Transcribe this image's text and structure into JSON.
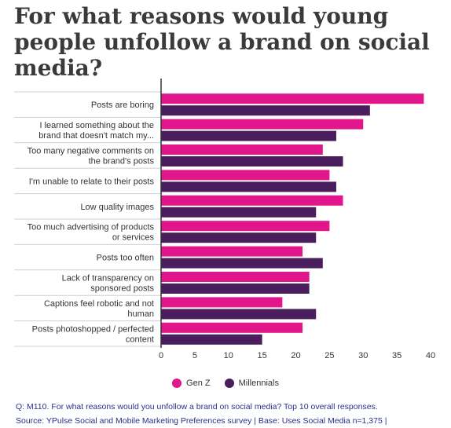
{
  "title": "For what reasons would young people unfollow a brand on social media?",
  "chart_data": {
    "type": "bar",
    "orientation": "horizontal",
    "categories": [
      [
        "Posts are boring"
      ],
      [
        "I learned something about the",
        "brand that doesn't match my..."
      ],
      [
        "Too many negative comments on",
        "the brand's posts"
      ],
      [
        "I'm unable to relate to their posts"
      ],
      [
        "Low quality images"
      ],
      [
        "Too much advertising of products",
        "or services"
      ],
      [
        "Posts too often"
      ],
      [
        "Lack of transparency on",
        "sponsored posts"
      ],
      [
        "Captions feel robotic and not",
        "human"
      ],
      [
        "Posts photoshopped / perfected",
        "content"
      ]
    ],
    "series": [
      {
        "name": "Gen Z",
        "color": "#e0168a",
        "values": [
          39,
          30,
          24,
          25,
          27,
          25,
          21,
          22,
          18,
          21
        ]
      },
      {
        "name": "Millennials",
        "color": "#4a1d5c",
        "values": [
          31,
          26,
          27,
          26,
          23,
          23,
          24,
          22,
          23,
          15
        ]
      }
    ],
    "xlim": [
      0,
      40
    ],
    "xticks": [
      0,
      5,
      10,
      15,
      20,
      25,
      30,
      35,
      40
    ],
    "grid": false,
    "legend_position": "bottom"
  },
  "legend": {
    "genz": "Gen Z",
    "millennials": "Millennials",
    "genz_color": "#e0168a",
    "millennials_color": "#4a1d5c"
  },
  "footnote": {
    "question": "Q: M110. For what reasons would you unfollow a brand on social media? Top 10 overall responses.",
    "source": "Source: YPulse Social and Mobile Marketing Preferences survey | Base:  Uses Social Media n=1,375 |"
  }
}
